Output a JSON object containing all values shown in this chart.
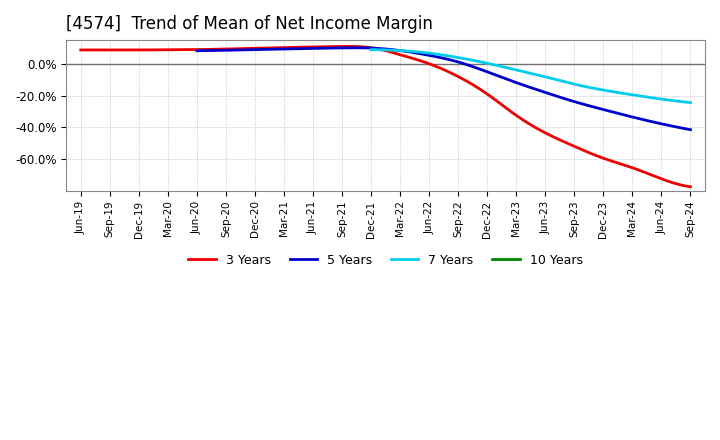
{
  "title": "[4574]  Trend of Mean of Net Income Margin",
  "title_fontsize": 12,
  "background_color": "#ffffff",
  "plot_bg_color": "#ffffff",
  "x_labels": [
    "Jun-19",
    "Sep-19",
    "Dec-19",
    "Mar-20",
    "Jun-20",
    "Sep-20",
    "Dec-20",
    "Mar-21",
    "Jun-21",
    "Sep-21",
    "Dec-21",
    "Mar-22",
    "Jun-22",
    "Sep-22",
    "Dec-22",
    "Mar-23",
    "Jun-23",
    "Sep-23",
    "Dec-23",
    "Mar-24",
    "Jun-24",
    "Sep-24"
  ],
  "ylim": [
    -0.8,
    0.15
  ],
  "yticks": [
    0.0,
    -0.2,
    -0.4,
    -0.6
  ],
  "ytick_labels": [
    "0.0%",
    "-20.0%",
    "-40.0%",
    "-60.0%"
  ],
  "series": {
    "3 Years": {
      "color": "#ee0000",
      "values": [
        0.088,
        0.088,
        0.088,
        0.089,
        0.09,
        0.094,
        0.098,
        0.103,
        0.107,
        0.11,
        0.102,
        0.058,
        0.001,
        -0.08,
        -0.19,
        -0.325,
        -0.435,
        -0.52,
        -0.595,
        -0.655,
        -0.725,
        -0.775
      ]
    },
    "5 Years": {
      "color": "#0000cc",
      "values": [
        null,
        null,
        null,
        null,
        0.083,
        0.086,
        0.09,
        0.094,
        0.098,
        0.101,
        0.1,
        0.084,
        0.054,
        0.012,
        -0.05,
        -0.118,
        -0.18,
        -0.238,
        -0.288,
        -0.335,
        -0.378,
        -0.415
      ]
    },
    "7 Years": {
      "color": "#00ccee",
      "values": [
        null,
        null,
        null,
        null,
        null,
        null,
        null,
        null,
        null,
        null,
        0.09,
        0.084,
        0.068,
        0.04,
        0.004,
        -0.038,
        -0.082,
        -0.128,
        -0.165,
        -0.195,
        -0.222,
        -0.244
      ]
    },
    "10 Years": {
      "color": "#008800",
      "values": [
        null,
        null,
        null,
        null,
        null,
        null,
        null,
        null,
        null,
        null,
        null,
        null,
        null,
        null,
        null,
        null,
        null,
        null,
        null,
        null,
        null,
        null
      ]
    }
  },
  "legend_entries": [
    "3 Years",
    "5 Years",
    "7 Years",
    "10 Years"
  ],
  "legend_colors": [
    "#ee0000",
    "#0000cc",
    "#00ccee",
    "#008800"
  ],
  "grid_color": "#888888",
  "zero_line_color": "#707070",
  "line_width": 2.0
}
